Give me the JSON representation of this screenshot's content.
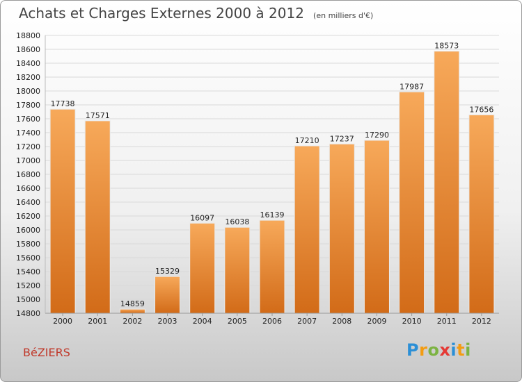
{
  "header": {
    "title": "Achats et Charges Externes 2000 à 2012",
    "unit": "(en milliers d'€)"
  },
  "footer": {
    "city": "BéZIERS",
    "logo": "Proxiti"
  },
  "colors": {
    "bar_light": "#f7a95a",
    "bar_dark": "#d26b18",
    "grid": "#d9d9d9",
    "logo": [
      "#2b8fd6",
      "#f39c12",
      "#7cb342",
      "#e53935"
    ]
  },
  "chart_data": {
    "type": "bar",
    "title": "Achats et Charges Externes 2000 à 2012",
    "subtitle": "(en milliers d'€)",
    "categories": [
      "2000",
      "2001",
      "2002",
      "2003",
      "2004",
      "2005",
      "2006",
      "2007",
      "2008",
      "2009",
      "2010",
      "2011",
      "2012"
    ],
    "values": [
      17738,
      17571,
      14859,
      15329,
      16097,
      16038,
      16139,
      17210,
      17237,
      17290,
      17987,
      18573,
      17656
    ],
    "ylim": [
      14800,
      18800
    ],
    "yticks": [
      14800,
      15000,
      15200,
      15400,
      15600,
      15800,
      16000,
      16200,
      16400,
      16600,
      16800,
      17000,
      17200,
      17400,
      17600,
      17800,
      18000,
      18200,
      18400,
      18600,
      18800
    ],
    "grid": true,
    "data_labels": true
  }
}
